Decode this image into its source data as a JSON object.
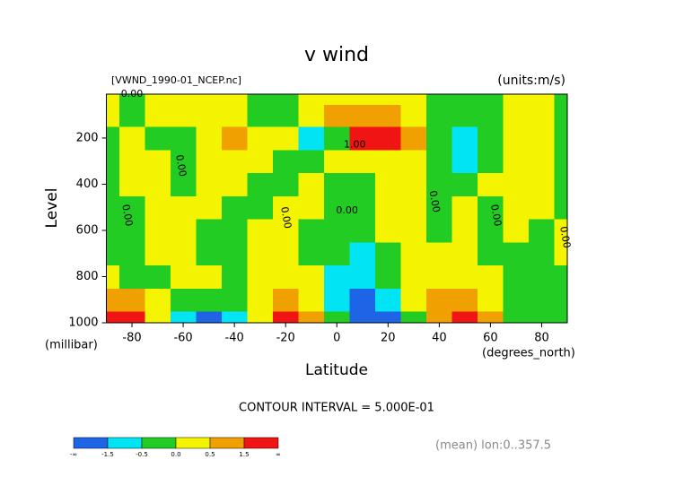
{
  "chart_data": {
    "type": "contour",
    "title": "v wind",
    "file_label": "[VWND_1990-01_NCEP.nc]",
    "units_label": "(units:m/s)",
    "y_label": "Level",
    "y_unit": "(millibar)",
    "x_label": "Latitude",
    "x_unit": "(degrees_north)",
    "contour_interval": "CONTOUR INTERVAL = 5.000E-01",
    "footer": "(mean) lon:0..357.5",
    "xlim": [
      -90,
      90
    ],
    "xticks": [
      -80,
      -60,
      -40,
      -20,
      0,
      20,
      40,
      60,
      80
    ],
    "ylim": [
      1000,
      10
    ],
    "yticks": [
      200,
      400,
      600,
      800,
      1000
    ],
    "lat": [
      -90,
      -80,
      -70,
      -60,
      -50,
      -40,
      -30,
      -20,
      -10,
      0,
      10,
      20,
      30,
      40,
      50,
      60,
      70,
      80,
      90
    ],
    "levels": [
      1000,
      900,
      800,
      700,
      600,
      500,
      400,
      300,
      200,
      100,
      10
    ],
    "values": [
      [
        2,
        2,
        0.2,
        -1,
        -1.8,
        -0.8,
        0.3,
        1.6,
        0.7,
        -0.3,
        -2,
        -1.8,
        -0.2,
        0.8,
        1.8,
        0.6,
        -0.2,
        -0.3,
        -0.2
      ],
      [
        1,
        0.8,
        0.3,
        -0.2,
        -0.3,
        -0.2,
        0.2,
        0.6,
        0.3,
        -0.8,
        -1.6,
        -1,
        0.1,
        0.6,
        1,
        0.3,
        -0.2,
        -0.3,
        -0.2
      ],
      [
        0.2,
        -0.2,
        -0.3,
        0.2,
        0.3,
        -0.2,
        0.2,
        0.3,
        0.2,
        -0.7,
        -0.8,
        -0.3,
        0.2,
        0.3,
        0.2,
        0.1,
        -0.2,
        -0.2,
        -0.1
      ],
      [
        -0.1,
        -0.2,
        0.2,
        0.3,
        -0.2,
        -0.2,
        0.2,
        0.3,
        -0.2,
        -0.3,
        -0.6,
        -0.3,
        0.2,
        0.3,
        0.2,
        -0.1,
        -0.2,
        -0.2,
        0.1
      ],
      [
        -0.2,
        -0.1,
        0.2,
        0.3,
        -0.2,
        -0.3,
        0.2,
        0.3,
        -0.2,
        -0.3,
        -0.2,
        0.2,
        0.3,
        -0.1,
        0.2,
        -0.2,
        0.2,
        -0.2,
        0.1
      ],
      [
        -0.3,
        -0.2,
        0.2,
        0.3,
        0.1,
        -0.2,
        -0.3,
        0.2,
        0.2,
        -0.2,
        -0.3,
        0.2,
        0.3,
        -0.2,
        0.2,
        -0.2,
        0.2,
        0.3,
        -0.1
      ],
      [
        -0.2,
        0.1,
        0.2,
        -0.2,
        0.2,
        0.3,
        -0.3,
        -0.2,
        0.2,
        -0.2,
        -0.3,
        0.2,
        0.3,
        -0.2,
        -0.2,
        0.2,
        0.3,
        0.2,
        -0.1
      ],
      [
        -0.2,
        0.2,
        0.3,
        -0.2,
        0.2,
        0.3,
        0.2,
        -0.2,
        -0.2,
        0.2,
        0.3,
        0.2,
        0.1,
        -0.2,
        -0.6,
        -0.2,
        0.2,
        0.2,
        -0.2
      ],
      [
        -0.3,
        0.2,
        -0.2,
        -0.2,
        0.2,
        0.6,
        0.3,
        0.2,
        -0.6,
        -0.3,
        1.8,
        1.6,
        0.7,
        -0.2,
        -0.8,
        -0.2,
        0.2,
        0.2,
        -0.2
      ],
      [
        0.2,
        -0.2,
        0.3,
        0.2,
        0.2,
        0.3,
        -0.2,
        -0.2,
        0.2,
        0.6,
        0.8,
        0.7,
        0.2,
        -0.2,
        -0.3,
        -0.2,
        0.2,
        0.2,
        -0.1
      ],
      [
        0.2,
        -0.2,
        0.2,
        0.2,
        0.3,
        0.2,
        -0.2,
        -0.2,
        0.2,
        0.3,
        0.2,
        0.2,
        0.2,
        -0.2,
        -0.2,
        -0.2,
        0.2,
        0.2,
        -0.2
      ]
    ],
    "contour_labels": [
      {
        "label": "0.00",
        "lat": -80,
        "level": 10,
        "vertical": false
      },
      {
        "label": "1.00",
        "lat": 7,
        "level": 230,
        "vertical": false
      },
      {
        "label": "0.00",
        "lat": -61,
        "level": 320,
        "vertical": true
      },
      {
        "label": "0.00",
        "lat": -82,
        "level": 535,
        "vertical": true
      },
      {
        "label": "0.00",
        "lat": -20,
        "level": 545,
        "vertical": true
      },
      {
        "label": "0.00",
        "lat": 4,
        "level": 515,
        "vertical": false
      },
      {
        "label": "0.00",
        "lat": 38,
        "level": 475,
        "vertical": true
      },
      {
        "label": "0.00",
        "lat": 62,
        "level": 535,
        "vertical": true
      },
      {
        "label": "0.00",
        "lat": 89,
        "level": 630,
        "vertical": true
      }
    ],
    "colorbar": {
      "levels": [
        -1.5,
        -0.5,
        {
          "value": 0,
          "label": "0.0"
        },
        0.5,
        1.5
      ],
      "low_label": "-∞",
      "high_label": "∞",
      "colors": [
        "#1e64e6",
        "#00e4f4",
        "#22cc22",
        "#f4f400",
        "#f0a000",
        "#f01414"
      ]
    }
  }
}
